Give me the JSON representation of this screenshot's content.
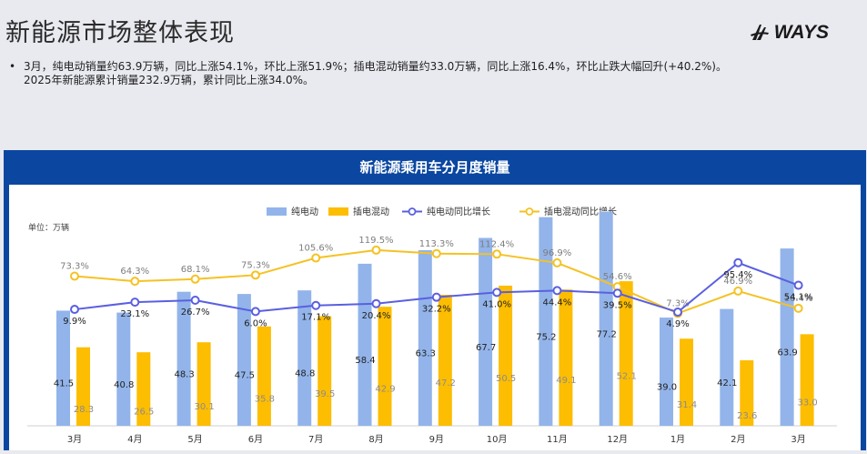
{
  "page": {
    "title": "新能源市场整体表现",
    "logo": "WAYS",
    "bullets": [
      "3月，纯电动销量约63.9万辆，同比上涨54.1%，环比上涨51.9%；插电混动销量约33.0万辆，同比上涨16.4%，环比止跌大幅回升(+40.2%)。",
      "2025年新能源累计销量232.9万辆，累计同比上涨34.0%。"
    ]
  },
  "chart_data": {
    "type": "bar",
    "title": "新能源乘用车分月度销量",
    "unit_label": "单位：万辆",
    "categories": [
      "3月",
      "4月",
      "5月",
      "6月",
      "7月",
      "8月",
      "9月",
      "10月",
      "11月",
      "12月",
      "1月",
      "2月",
      "3月"
    ],
    "series": [
      {
        "name": "纯电动",
        "kind": "bar",
        "values": [
          41.5,
          40.8,
          48.3,
          47.5,
          48.8,
          58.4,
          63.3,
          67.7,
          75.2,
          77.2,
          39.0,
          42.1,
          63.9
        ],
        "labels": [
          "41.5",
          "40.8",
          "48.3",
          "47.5",
          "48.8",
          "58.4",
          "63.3",
          "67.7",
          "75.2",
          "77.2",
          "39.0",
          "42.1",
          "63.9"
        ]
      },
      {
        "name": "插电混动",
        "kind": "bar",
        "values": [
          28.3,
          26.5,
          30.1,
          35.8,
          39.5,
          42.9,
          47.2,
          50.5,
          49.1,
          52.1,
          31.4,
          23.6,
          33.0
        ],
        "labels": [
          "28.3",
          "26.5",
          "30.1",
          "35.8",
          "39.5",
          "42.9",
          "47.2",
          "50.5",
          "49.1",
          "52.1",
          "31.4",
          "23.6",
          "33.0"
        ]
      },
      {
        "name": "纯电动同比增长",
        "kind": "line",
        "values": [
          9.9,
          23.1,
          26.7,
          6.0,
          17.1,
          20.4,
          32.2,
          41.0,
          44.4,
          39.5,
          4.9,
          95.4,
          54.1
        ],
        "labels": [
          "9.9%",
          "23.1%",
          "26.7%",
          "6.0%",
          "17.1%",
          "20.4%",
          "32.2%",
          "41.0%",
          "44.4%",
          "39.5%",
          "4.9%",
          "95.4%",
          "54.1%"
        ]
      },
      {
        "name": "插电混动同比增长",
        "kind": "line",
        "values": [
          73.3,
          64.3,
          68.1,
          75.3,
          105.6,
          119.5,
          113.3,
          112.4,
          96.9,
          54.6,
          7.3,
          46.9,
          16.4
        ],
        "labels": [
          "73.3%",
          "64.3%",
          "68.1%",
          "75.3%",
          "105.6%",
          "119.5%",
          "113.3%",
          "112.4%",
          "96.9%",
          "54.6%",
          "7.3%",
          "46.9%",
          "16.4%"
        ]
      }
    ],
    "colors": {
      "bev_bar": "#92b4ea",
      "phev_bar": "#fdbd00",
      "bev_line": "#5a5fe0",
      "phev_line": "#f5c223"
    },
    "legend_position": "top-center",
    "grid": false
  }
}
